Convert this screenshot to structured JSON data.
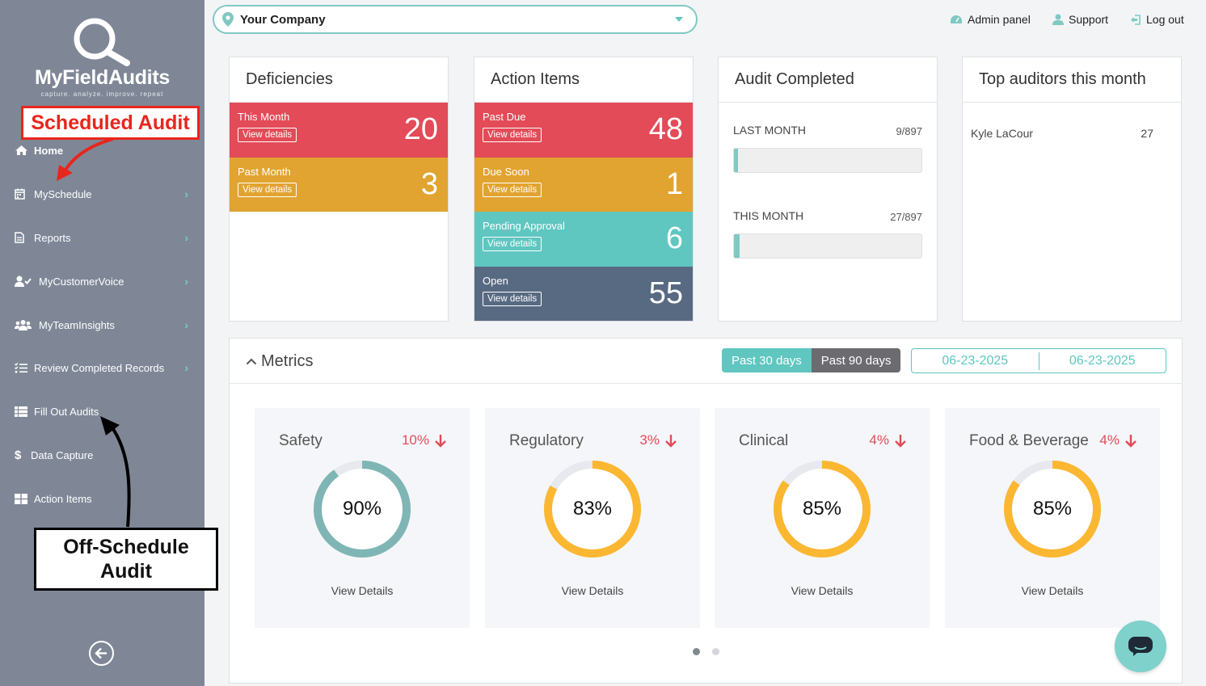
{
  "logo": {
    "name": "MyFieldAudits",
    "tagline": "capture. analyze. improve. repeat"
  },
  "sidebar": {
    "items": [
      {
        "label": "Home",
        "icon": "home-icon",
        "chevron": false
      },
      {
        "label": "MySchedule",
        "icon": "calendar-icon",
        "chevron": true
      },
      {
        "label": "Reports",
        "icon": "document-icon",
        "chevron": true
      },
      {
        "label": "MyCustomerVoice",
        "icon": "user-check-icon",
        "chevron": true
      },
      {
        "label": "MyTeamInsights",
        "icon": "team-icon",
        "chevron": true
      },
      {
        "label": "Review Completed Records",
        "icon": "checklist-icon",
        "chevron": true
      },
      {
        "label": "Fill Out Audits",
        "icon": "list-grid-icon",
        "chevron": false
      },
      {
        "label": "Data Capture",
        "icon": "dollar-icon",
        "chevron": false
      },
      {
        "label": "Action Items",
        "icon": "grid-icon",
        "chevron": false
      }
    ],
    "chevron_glyph": "›"
  },
  "annotations": {
    "scheduled": "Scheduled Audit",
    "off_schedule_line1": "Off-Schedule",
    "off_schedule_line2": "Audit"
  },
  "header": {
    "company": "Your Company",
    "admin": "Admin panel",
    "support": "Support",
    "logout": "Log out"
  },
  "deficiencies": {
    "title": "Deficiencies",
    "tiles": [
      {
        "label": "This Month",
        "button": "View details",
        "value": "20"
      },
      {
        "label": "Past Month",
        "button": "View details",
        "value": "3"
      }
    ]
  },
  "action_items": {
    "title": "Action Items",
    "tiles": [
      {
        "label": "Past Due",
        "button": "View details",
        "value": "48"
      },
      {
        "label": "Due Soon",
        "button": "View details",
        "value": "1"
      },
      {
        "label": "Pending Approval",
        "button": "View details",
        "value": "6"
      },
      {
        "label": "Open",
        "button": "View details",
        "value": "55"
      }
    ]
  },
  "audit_completed": {
    "title": "Audit Completed",
    "rows": [
      {
        "label": "LAST MONTH",
        "value": "9/897",
        "fraction": 0.01
      },
      {
        "label": "THIS MONTH",
        "value": "27/897",
        "fraction": 0.03
      }
    ]
  },
  "top_auditors": {
    "title": "Top auditors this month",
    "rows": [
      {
        "name": "Kyle LaCour",
        "count": "27"
      }
    ]
  },
  "metrics": {
    "title": "Metrics",
    "range_30": "Past 30 days",
    "range_90": "Past 90 days",
    "date_from": "06-23-2025",
    "date_to": "06-23-2025",
    "cards": [
      {
        "name": "Safety",
        "change": "10%",
        "value": "90%",
        "fraction": 0.9,
        "color": "#7fb5b5",
        "link": "View Details"
      },
      {
        "name": "Regulatory",
        "change": "3%",
        "value": "83%",
        "fraction": 0.83,
        "color": "#fbb731",
        "link": "View Details"
      },
      {
        "name": "Clinical",
        "change": "4%",
        "value": "85%",
        "fraction": 0.85,
        "color": "#fbb731",
        "link": "View Details"
      },
      {
        "name": "Food & Beverage",
        "change": "4%",
        "value": "85%",
        "fraction": 0.85,
        "color": "#fbb731",
        "link": "View Details"
      }
    ],
    "pages": 2,
    "active_page": 1
  },
  "colors": {
    "sidebar": "#7f8797",
    "accent": "#5fc6c0",
    "red": "#e24b57",
    "amber": "#e1a430",
    "slate": "#586a82"
  }
}
